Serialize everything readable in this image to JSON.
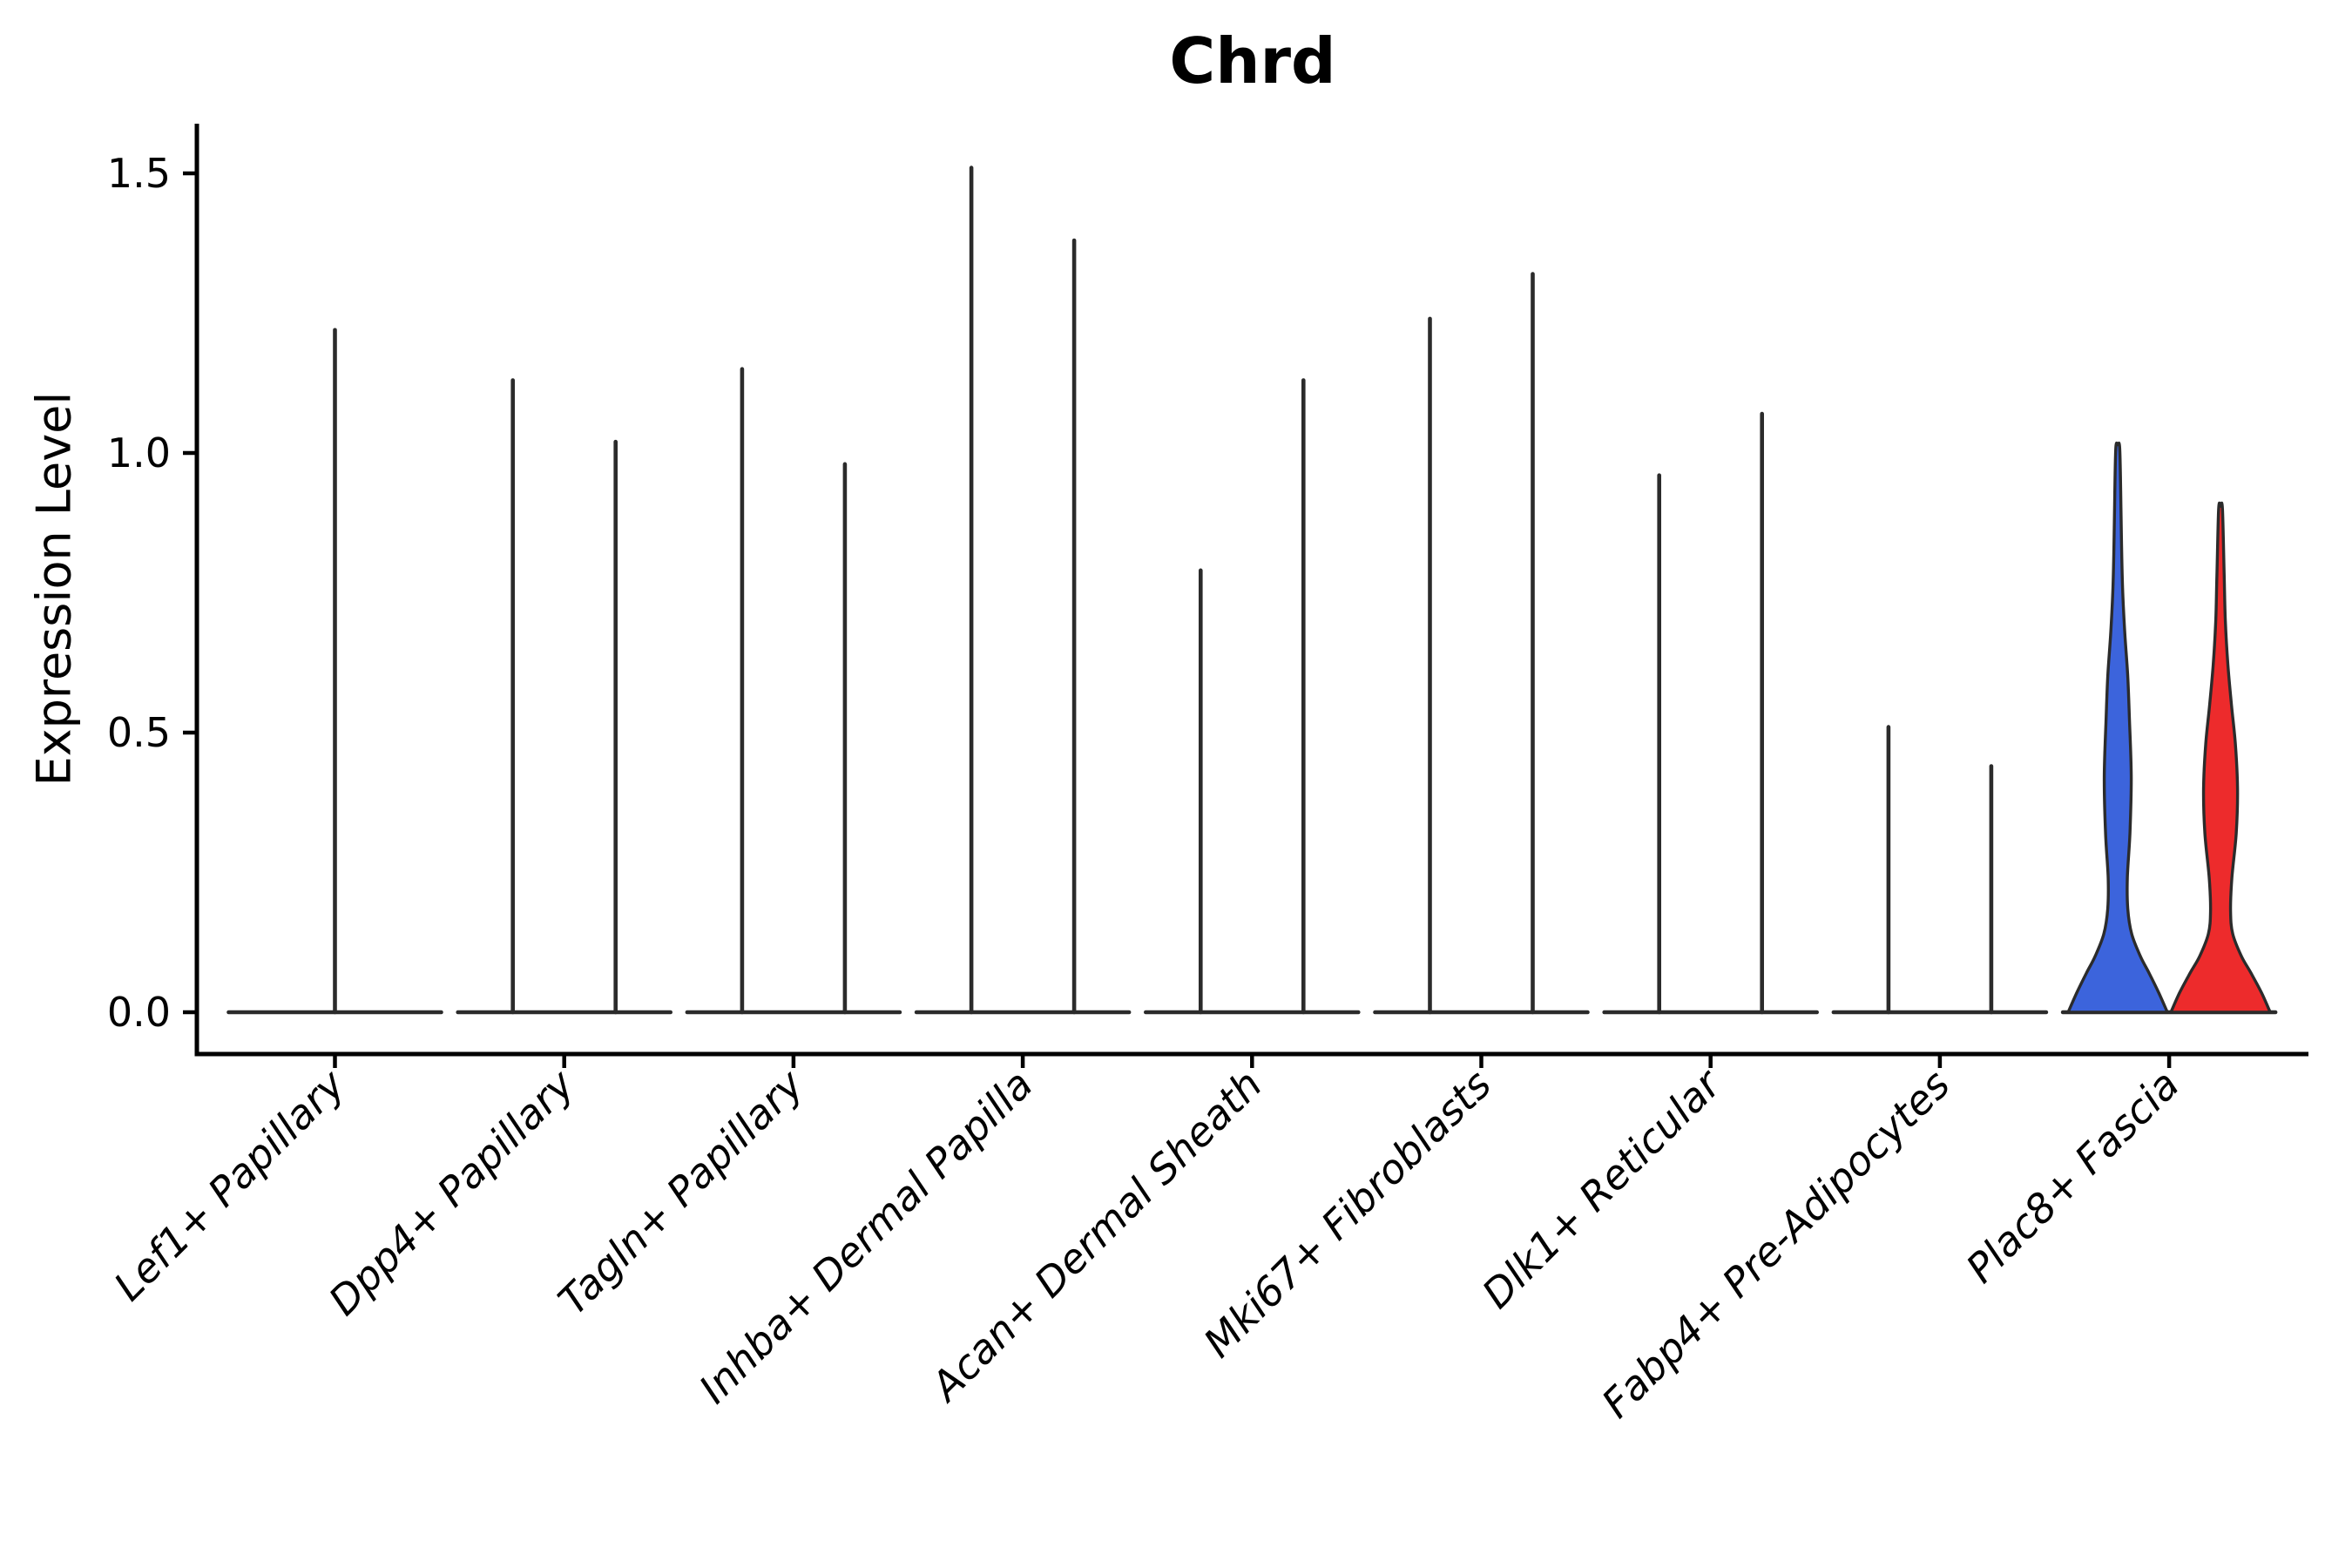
{
  "page": {
    "background": "#ffffff"
  },
  "chart_data": {
    "type": "violin",
    "title": "Chrd",
    "ylabel": "Expression Level",
    "xlabel": "",
    "ylim": [
      0,
      1.66
    ],
    "grid": false,
    "legend_position": "none",
    "yticks": [
      {
        "label": "0.0",
        "value": 0.0
      },
      {
        "label": "0.5",
        "value": 0.5
      },
      {
        "label": "1.0",
        "value": 1.0
      },
      {
        "label": "1.5",
        "value": 1.5
      }
    ],
    "style": {
      "outline_color": "#2b2b2b",
      "axis_color": "#000000",
      "text_color": "#000000",
      "split_fill_left": "#3c64dc",
      "split_fill_right": "#ed2b2c"
    },
    "categories": [
      "Lef1+ Papillary",
      "Dpp4+ Papillary",
      "Tagln+ Papillary",
      "Inhba+ Dermal Papilla",
      "Acan+ Dermal Sheath",
      "Mki67+ Fibroblasts",
      "Dlk1+ Reticular",
      "Fabp4+ Pre-Adipocytes",
      "Plac8+ Fascia"
    ],
    "violins": [
      {
        "category": "Lef1+ Papillary",
        "split": [
          {
            "position": "center",
            "max": 1.22,
            "fill": "none",
            "shape": "spike"
          }
        ]
      },
      {
        "category": "Dpp4+ Papillary",
        "split": [
          {
            "position": "left",
            "max": 1.13,
            "fill": "none",
            "shape": "spike"
          },
          {
            "position": "right",
            "max": 1.02,
            "fill": "none",
            "shape": "spike"
          }
        ]
      },
      {
        "category": "Tagln+ Papillary",
        "split": [
          {
            "position": "left",
            "max": 1.15,
            "fill": "none",
            "shape": "spike"
          },
          {
            "position": "right",
            "max": 0.98,
            "fill": "none",
            "shape": "spike"
          }
        ]
      },
      {
        "category": "Inhba+ Dermal Papilla",
        "split": [
          {
            "position": "left",
            "max": 1.51,
            "fill": "none",
            "shape": "spike"
          },
          {
            "position": "right",
            "max": 1.38,
            "fill": "none",
            "shape": "spike"
          }
        ]
      },
      {
        "category": "Acan+ Dermal Sheath",
        "split": [
          {
            "position": "left",
            "max": 0.79,
            "fill": "none",
            "shape": "spike"
          },
          {
            "position": "right",
            "max": 1.13,
            "fill": "none",
            "shape": "spike"
          }
        ]
      },
      {
        "category": "Mki67+ Fibroblasts",
        "split": [
          {
            "position": "left",
            "max": 1.24,
            "fill": "none",
            "shape": "spike"
          },
          {
            "position": "right",
            "max": 1.32,
            "fill": "none",
            "shape": "spike"
          }
        ]
      },
      {
        "category": "Dlk1+ Reticular",
        "split": [
          {
            "position": "left",
            "max": 0.96,
            "fill": "none",
            "shape": "spike"
          },
          {
            "position": "right",
            "max": 1.07,
            "fill": "none",
            "shape": "spike"
          }
        ]
      },
      {
        "category": "Fabp4+ Pre-Adipocytes",
        "split": [
          {
            "position": "left",
            "max": 0.51,
            "fill": "none",
            "shape": "spike"
          },
          {
            "position": "right",
            "max": 0.44,
            "fill": "none",
            "shape": "spike"
          }
        ]
      },
      {
        "category": "Plac8+ Fascia",
        "split": [
          {
            "position": "left",
            "max": 1.01,
            "fill": "#3c64dc",
            "shape": "full",
            "profile": [
              [
                0,
                57
              ],
              [
                0.035,
                47
              ],
              [
                0.07,
                36
              ],
              [
                0.1,
                26
              ],
              [
                0.14,
                16
              ],
              [
                0.185,
                11.5
              ],
              [
                0.24,
                11
              ],
              [
                0.32,
                14
              ],
              [
                0.42,
                15.5
              ],
              [
                0.52,
                13.5
              ],
              [
                0.6,
                11.5
              ],
              [
                0.68,
                8
              ],
              [
                0.76,
                5.5
              ],
              [
                0.85,
                4.2
              ],
              [
                0.93,
                3.4
              ],
              [
                1.01,
                2.2
              ]
            ]
          },
          {
            "position": "right",
            "max": 0.9,
            "fill": "#ed2b2c",
            "shape": "full",
            "profile": [
              [
                0,
                57
              ],
              [
                0.035,
                47
              ],
              [
                0.07,
                35
              ],
              [
                0.1,
                24
              ],
              [
                0.14,
                14
              ],
              [
                0.18,
                11.5
              ],
              [
                0.24,
                13
              ],
              [
                0.32,
                18
              ],
              [
                0.4,
                19.5
              ],
              [
                0.48,
                17
              ],
              [
                0.55,
                12.5
              ],
              [
                0.62,
                8.5
              ],
              [
                0.7,
                5.5
              ],
              [
                0.78,
                4.2
              ],
              [
                0.9,
                2.2
              ]
            ]
          }
        ]
      }
    ]
  }
}
